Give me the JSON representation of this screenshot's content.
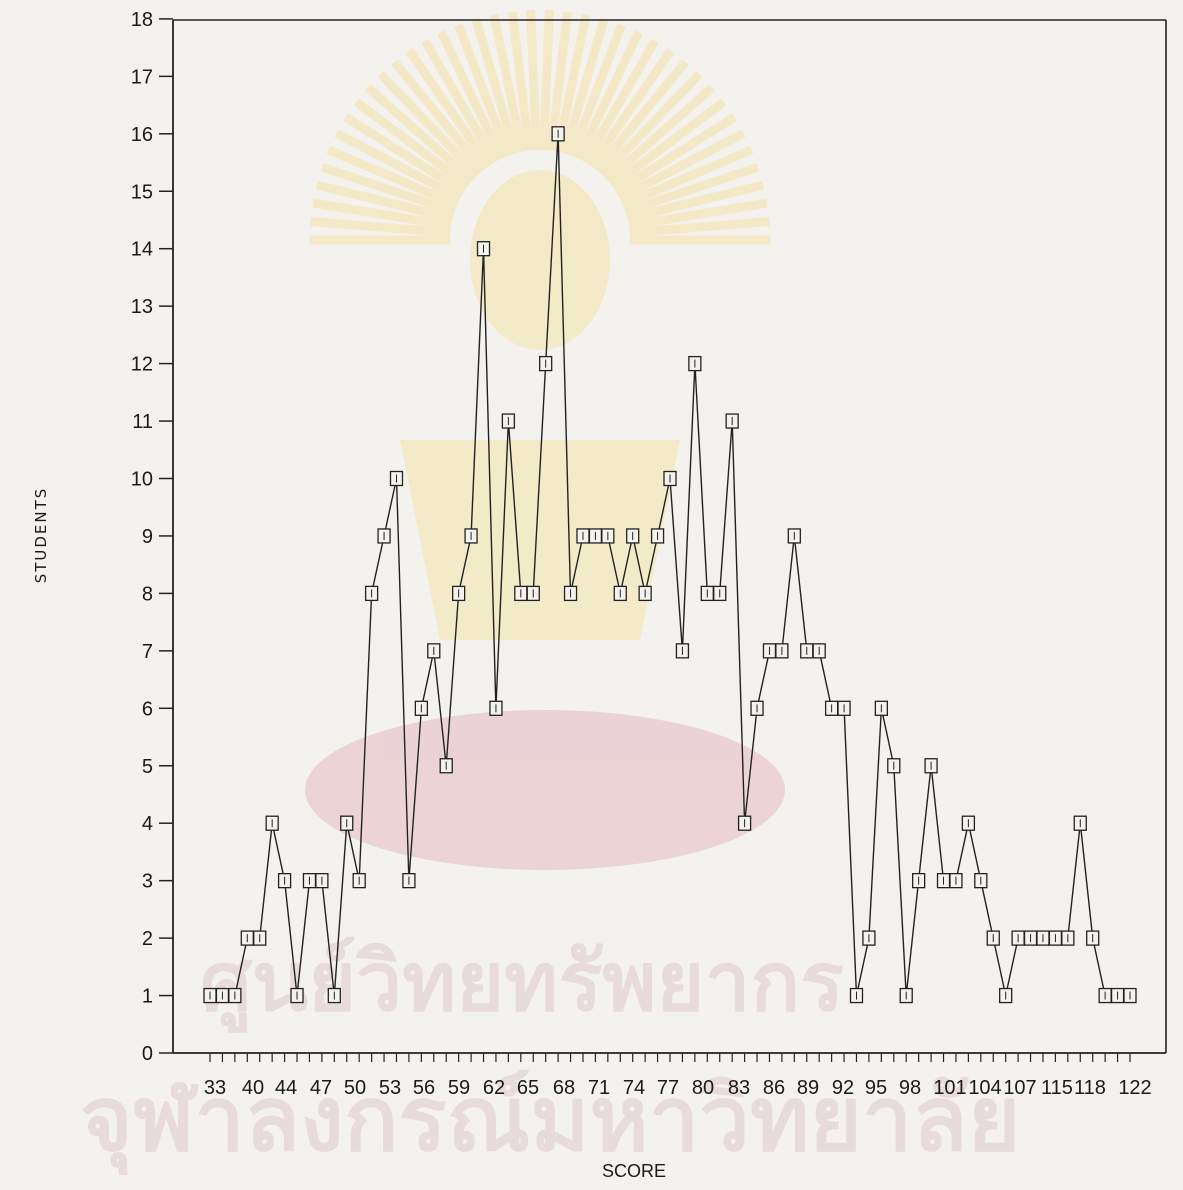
{
  "watermark": {
    "line1": "ศูนย์วิทยทรัพยากร",
    "line2": "จุฬาลงกรณ์มหาวิทยาลัย",
    "emblem": "university-emblem-watermark",
    "colors": {
      "emblem": "#f0c000",
      "text": "#a0456a"
    }
  },
  "chart_data": {
    "type": "line",
    "title": "",
    "xlabel": "SCORE",
    "ylabel": "STUDENTS",
    "ylim": [
      0,
      18
    ],
    "yticks": [
      0,
      1,
      2,
      3,
      4,
      5,
      6,
      7,
      8,
      9,
      10,
      11,
      12,
      13,
      14,
      15,
      16,
      17,
      18
    ],
    "x_tick_labels": [
      "33",
      "40",
      "44",
      "47",
      "50",
      "53",
      "56",
      "59",
      "62",
      "65",
      "68",
      "71",
      "74",
      "77",
      "80",
      "83",
      "86",
      "89",
      "92",
      "95",
      "98",
      "101",
      "104",
      "107",
      "115",
      "118",
      "122"
    ],
    "grid": false,
    "marker": "square",
    "series": [
      {
        "values": [
          1,
          1,
          1,
          2,
          2,
          4,
          3,
          1,
          3,
          3,
          1,
          4,
          3,
          8,
          9,
          10,
          3,
          6,
          7,
          5,
          8,
          9,
          14,
          6,
          11,
          8,
          8,
          12,
          16,
          8,
          9,
          9,
          9,
          8,
          9,
          8,
          9,
          10,
          7,
          12,
          8,
          8,
          11,
          4,
          6,
          7,
          7,
          9,
          7,
          7,
          6,
          6,
          1,
          2,
          6,
          5,
          1,
          3,
          5,
          3,
          3,
          4,
          3,
          2,
          1,
          2,
          2,
          2,
          2,
          2,
          4,
          2,
          1,
          1,
          1
        ]
      }
    ]
  }
}
